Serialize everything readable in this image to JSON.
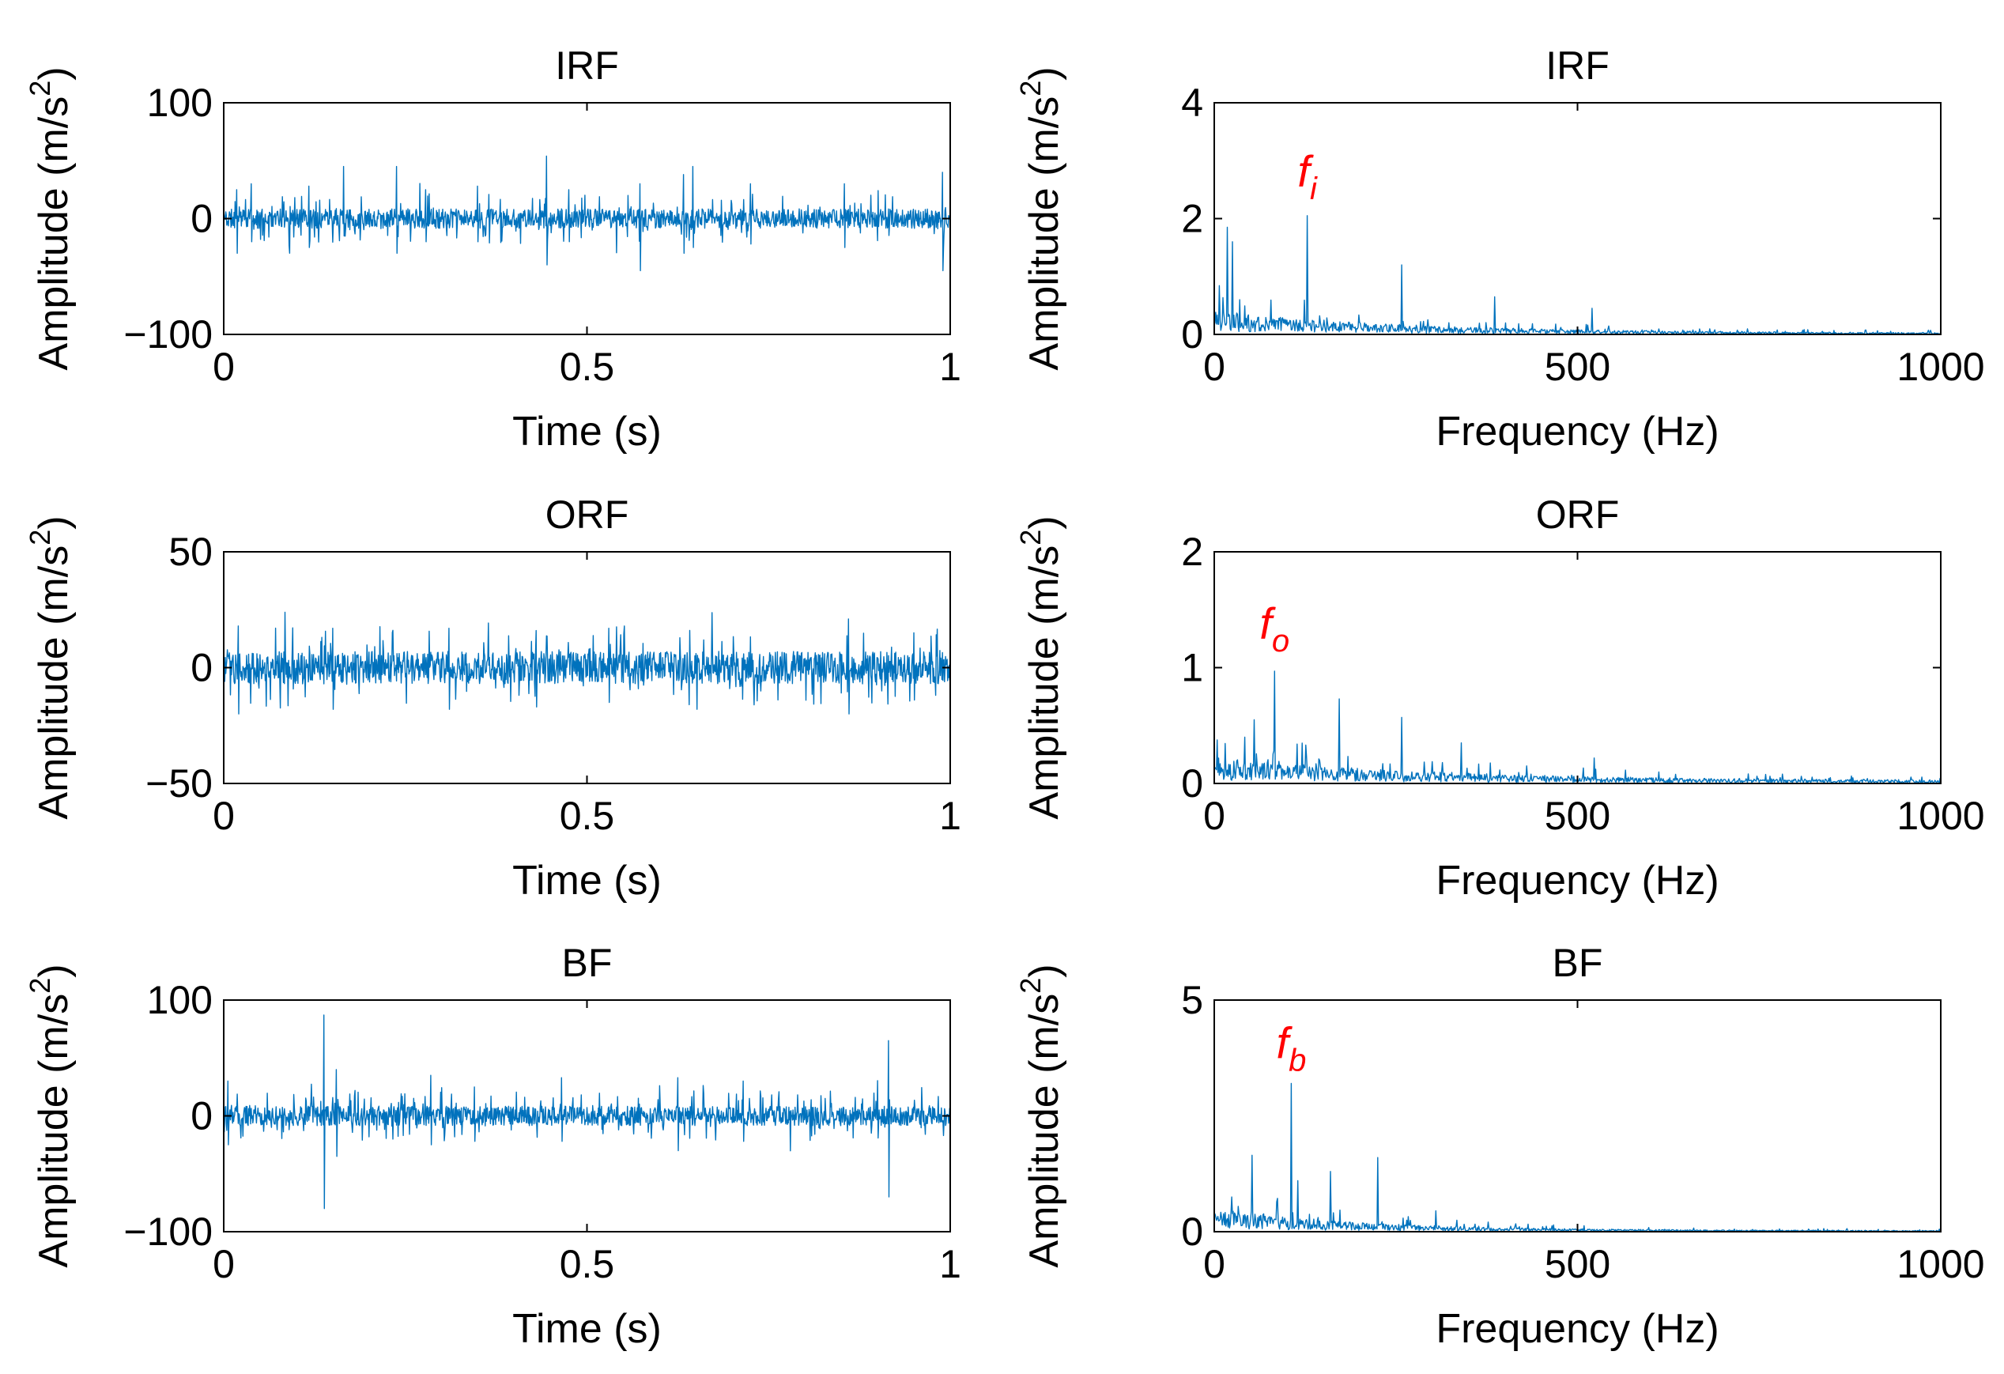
{
  "chart_data": [
    {
      "type": "line",
      "kind": "time",
      "title": "IRF",
      "xlabel": "Time (s)",
      "ylabel_main": "Amplitude (m/s",
      "ylabel_sup": "2",
      "ylabel_close": ")",
      "xlim": [
        0,
        1
      ],
      "ylim": [
        -100,
        100
      ],
      "xticks": [
        "0",
        "0.5",
        "1"
      ],
      "yticks": [
        "−100",
        "0",
        "100"
      ],
      "xtick_values": [
        0,
        0.5,
        1
      ],
      "ytick_values": [
        -100,
        0,
        100
      ],
      "noise_amplitude": 12,
      "spike_period": 0.09,
      "spikes": [
        {
          "x": 0.018,
          "hi": 25,
          "lo": -30
        },
        {
          "x": 0.038,
          "hi": 30,
          "lo": -20
        },
        {
          "x": 0.117,
          "hi": 28,
          "lo": -25
        },
        {
          "x": 0.165,
          "hi": 45,
          "lo": -15
        },
        {
          "x": 0.238,
          "hi": 45,
          "lo": -30
        },
        {
          "x": 0.278,
          "hi": 25,
          "lo": -20
        },
        {
          "x": 0.349,
          "hi": 28,
          "lo": -20
        },
        {
          "x": 0.444,
          "hi": 54,
          "lo": -40
        },
        {
          "x": 0.475,
          "hi": 25,
          "lo": -20
        },
        {
          "x": 0.573,
          "hi": 30,
          "lo": -45
        },
        {
          "x": 0.633,
          "hi": 38,
          "lo": -30
        },
        {
          "x": 0.646,
          "hi": 45,
          "lo": -25
        },
        {
          "x": 0.725,
          "hi": 30,
          "lo": -22
        },
        {
          "x": 0.854,
          "hi": 30,
          "lo": -25
        },
        {
          "x": 0.989,
          "hi": 40,
          "lo": -45
        }
      ],
      "seed": 11
    },
    {
      "type": "line",
      "kind": "spectrum",
      "title": "IRF",
      "xlabel": "Frequency (Hz)",
      "ylabel_main": "Amplitude (m/s",
      "ylabel_sup": "2",
      "ylabel_close": ")",
      "xlim": [
        0,
        1000
      ],
      "ylim": [
        0,
        4
      ],
      "xticks": [
        "0",
        "500",
        "1000"
      ],
      "yticks": [
        "0",
        "2",
        "4"
      ],
      "xtick_values": [
        0,
        500,
        1000
      ],
      "ytick_values": [
        0,
        2,
        4
      ],
      "noise_floor": 0.25,
      "decay_hz": 260,
      "peaks": [
        {
          "f": 18,
          "a": 1.85
        },
        {
          "f": 25,
          "a": 1.6
        },
        {
          "f": 35,
          "a": 0.6
        },
        {
          "f": 128,
          "a": 2.05
        },
        {
          "f": 258,
          "a": 1.2
        },
        {
          "f": 386,
          "a": 0.65
        },
        {
          "f": 520,
          "a": 0.45
        }
      ],
      "annotation": {
        "base": "f",
        "sub": "i",
        "x": 128,
        "y": 2.55
      },
      "seed": 21
    },
    {
      "type": "line",
      "kind": "time",
      "title": "ORF",
      "xlabel": "Time (s)",
      "ylabel_main": "Amplitude (m/s",
      "ylabel_sup": "2",
      "ylabel_close": ")",
      "xlim": [
        0,
        1
      ],
      "ylim": [
        -50,
        50
      ],
      "xticks": [
        "0",
        "0.5",
        "1"
      ],
      "yticks": [
        "−50",
        "0",
        "50"
      ],
      "xtick_values": [
        0,
        0.5,
        1
      ],
      "ytick_values": [
        -50,
        0,
        50
      ],
      "noise_amplitude": 10,
      "spike_period": 0.028,
      "spikes": [
        {
          "x": 0.02,
          "hi": 18,
          "lo": -20
        },
        {
          "x": 0.15,
          "hi": 17,
          "lo": -18
        },
        {
          "x": 0.31,
          "hi": 17,
          "lo": -18
        },
        {
          "x": 0.43,
          "hi": 16,
          "lo": -17
        },
        {
          "x": 0.53,
          "hi": 17,
          "lo": -15
        },
        {
          "x": 0.86,
          "hi": 21,
          "lo": -20
        },
        {
          "x": 0.95,
          "hi": 15,
          "lo": -14
        }
      ],
      "seed": 31
    },
    {
      "type": "line",
      "kind": "spectrum",
      "title": "ORF",
      "xlabel": "Frequency (Hz)",
      "ylabel_main": "Amplitude (m/s",
      "ylabel_sup": "2",
      "ylabel_close": ")",
      "xlim": [
        0,
        1000
      ],
      "ylim": [
        0,
        2
      ],
      "xticks": [
        "0",
        "500",
        "1000"
      ],
      "yticks": [
        "0",
        "1",
        "2"
      ],
      "xtick_values": [
        0,
        500,
        1000
      ],
      "ytick_values": [
        0,
        1,
        2
      ],
      "noise_floor": 0.13,
      "decay_hz": 300,
      "peaks": [
        {
          "f": 42,
          "a": 0.4
        },
        {
          "f": 55,
          "a": 0.55
        },
        {
          "f": 83,
          "a": 0.97
        },
        {
          "f": 172,
          "a": 0.73
        },
        {
          "f": 258,
          "a": 0.57
        },
        {
          "f": 340,
          "a": 0.35
        },
        {
          "f": 523,
          "a": 0.22
        }
      ],
      "annotation": {
        "base": "f",
        "sub": "o",
        "x": 83,
        "y": 1.25
      },
      "seed": 41
    },
    {
      "type": "line",
      "kind": "time",
      "title": "BF",
      "xlabel": "Time (s)",
      "ylabel_main": "Amplitude (m/s",
      "ylabel_sup": "2",
      "ylabel_close": ")",
      "xlim": [
        0,
        1
      ],
      "ylim": [
        -100,
        100
      ],
      "xticks": [
        "0",
        "0.5",
        "1"
      ],
      "yticks": [
        "−100",
        "0",
        "100"
      ],
      "xtick_values": [
        0,
        0.5,
        1
      ],
      "ytick_values": [
        -100,
        0,
        100
      ],
      "noise_amplitude": 12,
      "spike_period": 0.06,
      "spikes": [
        {
          "x": 0.006,
          "hi": 30,
          "lo": -25
        },
        {
          "x": 0.138,
          "hi": 87,
          "lo": -80
        },
        {
          "x": 0.155,
          "hi": 40,
          "lo": -35
        },
        {
          "x": 0.285,
          "hi": 35,
          "lo": -25
        },
        {
          "x": 0.345,
          "hi": 25,
          "lo": -22
        },
        {
          "x": 0.465,
          "hi": 33,
          "lo": -22
        },
        {
          "x": 0.625,
          "hi": 33,
          "lo": -30
        },
        {
          "x": 0.715,
          "hi": 30,
          "lo": -22
        },
        {
          "x": 0.915,
          "hi": 65,
          "lo": -70
        }
      ],
      "seed": 51
    },
    {
      "type": "line",
      "kind": "spectrum",
      "title": "BF",
      "xlabel": "Frequency (Hz)",
      "ylabel_main": "Amplitude (m/s",
      "ylabel_sup": "2",
      "ylabel_close": ")",
      "xlim": [
        0,
        1000
      ],
      "ylim": [
        0,
        5
      ],
      "xticks": [
        "0",
        "500",
        "1000"
      ],
      "yticks": [
        "0",
        "5"
      ],
      "xtick_values": [
        0,
        500,
        1000
      ],
      "ytick_values": [
        0,
        5
      ],
      "noise_floor": 0.3,
      "decay_hz": 200,
      "peaks": [
        {
          "f": 52,
          "a": 1.65
        },
        {
          "f": 106,
          "a": 3.2
        },
        {
          "f": 115,
          "a": 1.1
        },
        {
          "f": 160,
          "a": 1.3
        },
        {
          "f": 225,
          "a": 1.6
        },
        {
          "f": 305,
          "a": 0.45
        }
      ],
      "annotation": {
        "base": "f",
        "sub": "b",
        "x": 106,
        "y": 3.75
      },
      "seed": 61
    }
  ],
  "colors": {
    "series": "#0072BD",
    "annotation": "#ff0000",
    "axes": "#000000"
  }
}
